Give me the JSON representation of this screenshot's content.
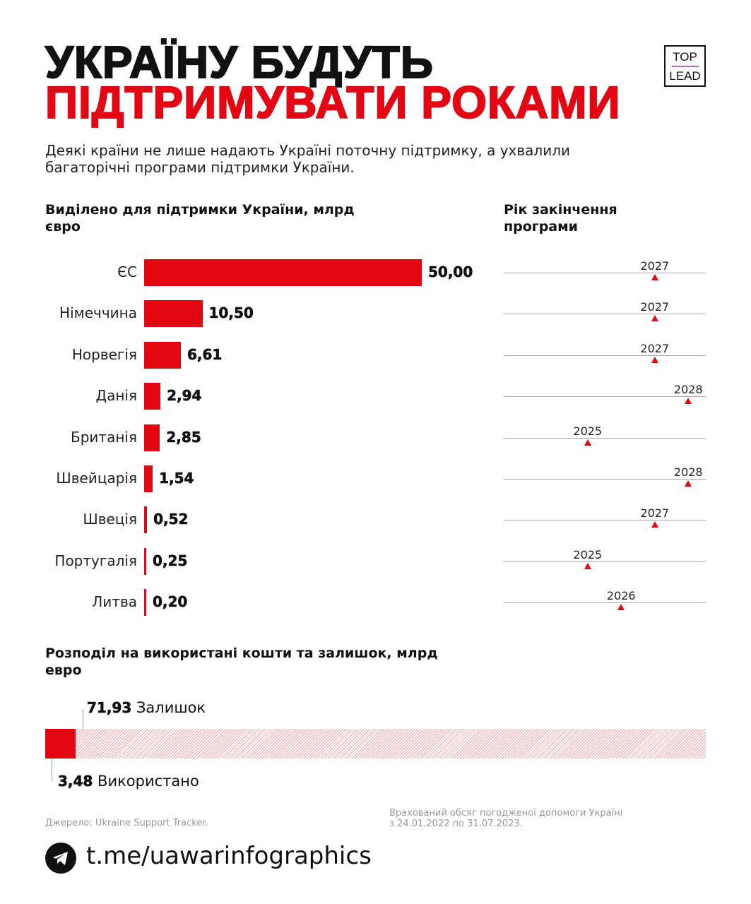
{
  "title": {
    "line1": "УКРАЇНУ БУДУТЬ",
    "line2": "ПІДТРИМУВАТИ РОКАМИ"
  },
  "logo": {
    "top": "TOP",
    "bottom": "LEAD"
  },
  "subtitle": "Деякі країни не лише надають Україні поточну підтримку, а ухвалили багаторічні програми підтримки України.",
  "colors": {
    "accent": "#e30613"
  },
  "chart_data": [
    {
      "type": "bar",
      "orientation": "horizontal",
      "title": "Виділено для підтримки України, млрд євро",
      "categories": [
        "ЄС",
        "Німеччина",
        "Норвегія",
        "Данія",
        "Британія",
        "Швейцарія",
        "Швеція",
        "Португалія",
        "Литва"
      ],
      "values": [
        50.0,
        10.5,
        6.61,
        2.94,
        2.85,
        1.54,
        0.52,
        0.25,
        0.2
      ],
      "value_labels": [
        "50,00",
        "10,50",
        "6,61",
        "2,94",
        "2,85",
        "1,54",
        "0,52",
        "0,25",
        "0,20"
      ]
    },
    {
      "type": "scatter",
      "title": "Рік закінчення програми",
      "categories": [
        "ЄС",
        "Німеччина",
        "Норвегія",
        "Данія",
        "Британія",
        "Швейцарія",
        "Швеція",
        "Португалія",
        "Литва"
      ],
      "values": [
        2027,
        2027,
        2027,
        2028,
        2025,
        2028,
        2027,
        2025,
        2026
      ],
      "xlim": [
        2022.5,
        2028.5
      ]
    },
    {
      "type": "bar",
      "stacked": true,
      "title": "Розподіл на використані кошти та залишок, млрд евро",
      "series": [
        {
          "name": "Використано",
          "value": 3.48,
          "label": "3,48"
        },
        {
          "name": "Залишок",
          "value": 71.93,
          "label": "71,93"
        }
      ]
    }
  ],
  "source": "Джерело: Ukraine Support Tracker.",
  "footnote": {
    "line1": "Врахований обсяг погодженої допомоги Україні",
    "line2": "з 24.01.2022 по 31.07.2023."
  },
  "telegram": "t.me/uawarinfographics"
}
